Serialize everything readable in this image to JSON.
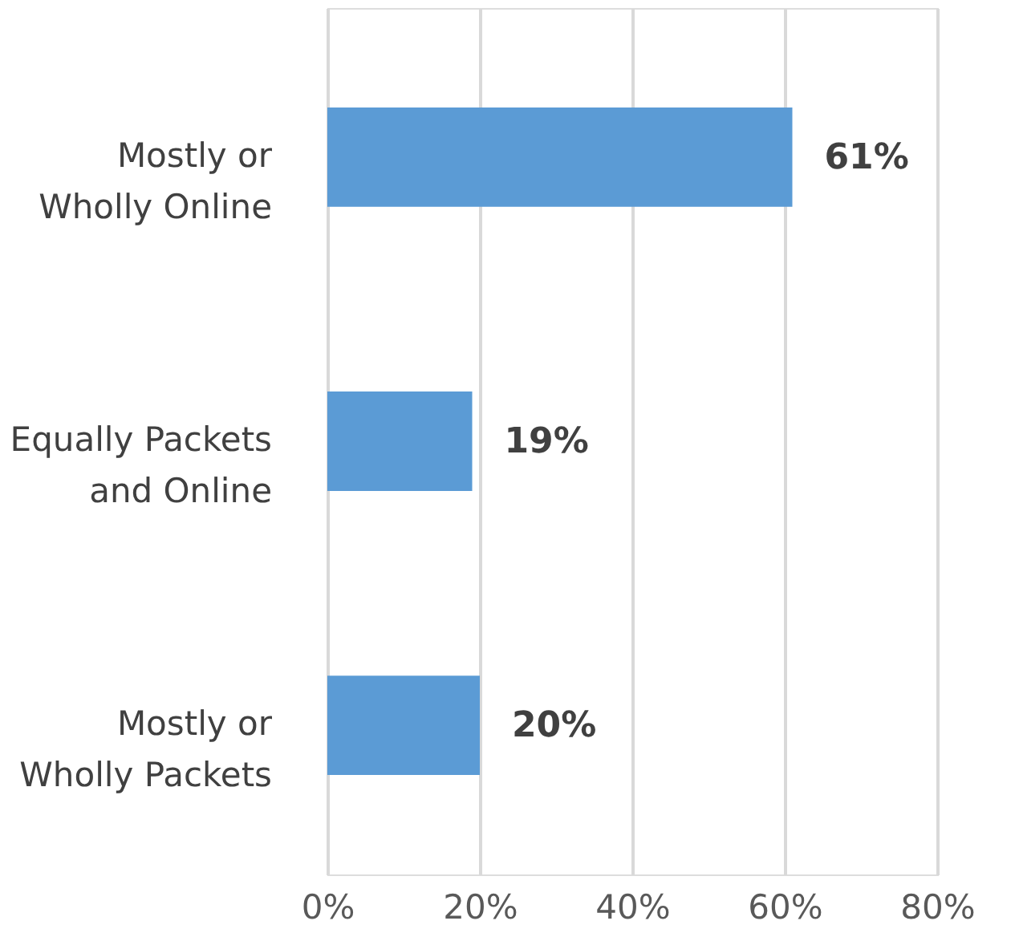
{
  "chart_data": {
    "type": "bar",
    "orientation": "horizontal",
    "categories": [
      "Mostly or Wholly Online",
      "Equally Packets and Online",
      "Mostly or Wholly Packets"
    ],
    "values": [
      61,
      19,
      20
    ],
    "value_labels": [
      "61%",
      "19%",
      "20%"
    ],
    "color": "#5b9bd5",
    "xlim": [
      0,
      80
    ],
    "xticks": [
      {
        "value": 0,
        "label": "0%"
      },
      {
        "value": 20,
        "label": "20%"
      },
      {
        "value": 40,
        "label": "40%"
      },
      {
        "value": 60,
        "label": "60%"
      },
      {
        "value": 80,
        "label": "80%"
      }
    ],
    "grid": "x"
  }
}
